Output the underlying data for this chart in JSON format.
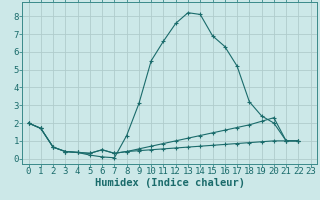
{
  "xlabel": "Humidex (Indice chaleur)",
  "background_color": "#cce8e8",
  "grid_color": "#b0cccc",
  "line_color": "#1a6b6b",
  "spine_color": "#3a8a8a",
  "xlim": [
    -0.5,
    23.5
  ],
  "ylim": [
    -0.3,
    8.8
  ],
  "x": [
    0,
    1,
    2,
    3,
    4,
    5,
    6,
    7,
    8,
    9,
    10,
    11,
    12,
    13,
    14,
    15,
    16,
    17,
    18,
    19,
    20,
    21,
    22,
    23
  ],
  "line1": [
    2.0,
    1.7,
    0.65,
    0.4,
    0.35,
    0.2,
    0.1,
    0.05,
    1.3,
    3.1,
    5.5,
    6.6,
    7.6,
    8.2,
    8.1,
    6.9,
    6.3,
    5.2,
    3.2,
    2.4,
    2.0,
    1.0,
    1.0,
    null
  ],
  "line2": [
    2.0,
    1.7,
    0.65,
    0.4,
    0.35,
    0.3,
    0.5,
    0.3,
    0.4,
    0.55,
    0.7,
    0.85,
    1.0,
    1.15,
    1.3,
    1.45,
    1.6,
    1.75,
    1.9,
    2.1,
    2.3,
    1.0,
    1.0,
    null
  ],
  "line3": [
    2.0,
    1.7,
    0.65,
    0.4,
    0.35,
    0.3,
    0.5,
    0.3,
    0.4,
    0.45,
    0.5,
    0.55,
    0.6,
    0.65,
    0.7,
    0.75,
    0.8,
    0.85,
    0.9,
    0.95,
    1.0,
    1.0,
    1.0,
    null
  ],
  "xtick_labels": [
    "0",
    "1",
    "2",
    "3",
    "4",
    "5",
    "6",
    "7",
    "8",
    "9",
    "10",
    "11",
    "12",
    "13",
    "14",
    "15",
    "16",
    "17",
    "18",
    "19",
    "20",
    "21",
    "22",
    "23"
  ],
  "ytick_labels": [
    "0",
    "1",
    "2",
    "3",
    "4",
    "5",
    "6",
    "7",
    "8"
  ],
  "fontsize_ticks": 6.5,
  "fontsize_xlabel": 7.5
}
